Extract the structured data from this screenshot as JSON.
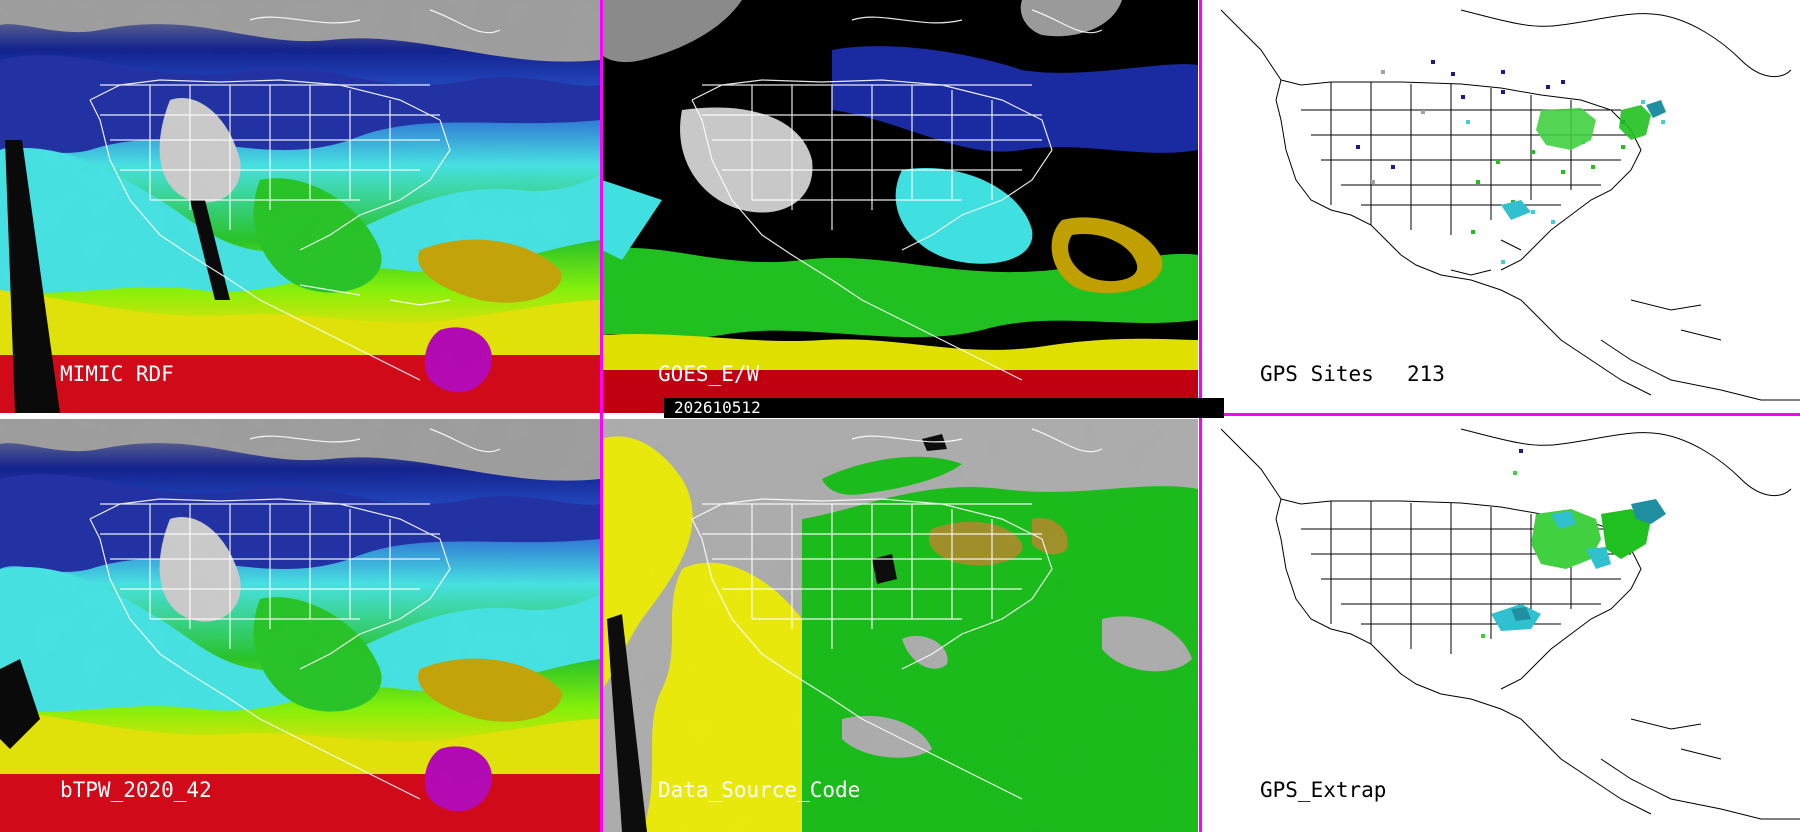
{
  "timestamp": "202610512",
  "panels": {
    "mimic_rdf": {
      "label": "MIMIC RDF"
    },
    "goes": {
      "label": "GOES_E/W"
    },
    "gps_sites": {
      "label": "GPS Sites",
      "count": "213"
    },
    "btpw": {
      "label": "bTPW_2020_42"
    },
    "data_source": {
      "label": "Data_Source_Code"
    },
    "gps_extrap": {
      "label": "GPS_Extrap"
    }
  },
  "colors": {
    "separator": "#ff00ff",
    "tpw_scale": [
      "#2a2a2a",
      "#8a8a8a",
      "#d0d0d0",
      "#0a1a8a",
      "#2050d0",
      "#40e0e0",
      "#20c020",
      "#80f000",
      "#e0e000",
      "#c0a000",
      "#e00000",
      "#b000b0"
    ],
    "source_codes": [
      "#a8a8a8",
      "#e8e800",
      "#10b810",
      "#9a8a20",
      "#000000"
    ]
  },
  "icons": [
    "map-outline-icon",
    "site-marker-icon"
  ]
}
